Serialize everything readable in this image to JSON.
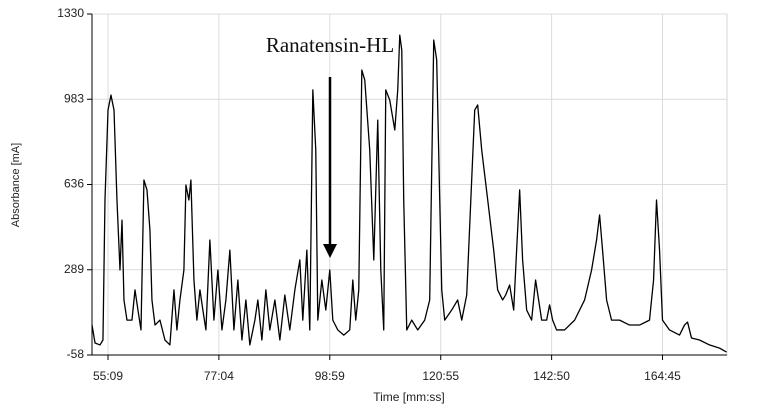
{
  "chart_data": {
    "type": "line",
    "x_label": "Time [mm:ss]",
    "y_label": "Absorbance [mA]",
    "annotation": "Ranatensin-HL",
    "xlim": [
      3119,
      10650
    ],
    "xticks": [
      {
        "value": 3309,
        "label": "55:09"
      },
      {
        "value": 4624,
        "label": "77:04"
      },
      {
        "value": 5939,
        "label": "98:59"
      },
      {
        "value": 7255,
        "label": "120:55"
      },
      {
        "value": 8570,
        "label": "142:50"
      },
      {
        "value": 9885,
        "label": "164:45"
      }
    ],
    "ylim": [
      -58,
      1330
    ],
    "yticks": [
      -58,
      289,
      636,
      983,
      1330
    ],
    "grid": true,
    "series": [
      {
        "color": "#000000",
        "x": [
          3119,
          3155,
          3214,
          3249,
          3273,
          3309,
          3344,
          3380,
          3415,
          3451,
          3475,
          3498,
          3534,
          3593,
          3629,
          3664,
          3700,
          3735,
          3771,
          3806,
          3830,
          3866,
          3925,
          3984,
          4043,
          4091,
          4126,
          4162,
          4209,
          4233,
          4268,
          4292,
          4328,
          4363,
          4399,
          4434,
          4470,
          4517,
          4565,
          4612,
          4660,
          4707,
          4754,
          4802,
          4849,
          4897,
          4944,
          4991,
          5051,
          5086,
          5134,
          5181,
          5228,
          5288,
          5347,
          5406,
          5465,
          5525,
          5584,
          5619,
          5667,
          5702,
          5738,
          5773,
          5797,
          5845,
          5892,
          5939,
          5975,
          6034,
          6105,
          6176,
          6212,
          6247,
          6283,
          6319,
          6354,
          6413,
          6461,
          6508,
          6544,
          6579,
          6603,
          6650,
          6710,
          6745,
          6769,
          6793,
          6816,
          6852,
          6911,
          6982,
          7065,
          7124,
          7172,
          7207,
          7243,
          7267,
          7302,
          7385,
          7456,
          7504,
          7563,
          7622,
          7658,
          7693,
          7741,
          7812,
          7883,
          7930,
          7989,
          8025,
          8072,
          8120,
          8155,
          8191,
          8226,
          8274,
          8333,
          8380,
          8416,
          8452,
          8511,
          8546,
          8582,
          8629,
          8724,
          8843,
          8961,
          9044,
          9103,
          9139,
          9174,
          9222,
          9281,
          9376,
          9494,
          9613,
          9731,
          9779,
          9814,
          9850,
          9885,
          9968,
          10087,
          10146,
          10182,
          10229,
          10324,
          10442,
          10561,
          10644
        ],
        "values": [
          64,
          -9,
          -17,
          3,
          573,
          939,
          1000,
          939,
          573,
          288,
          491,
          166,
          84,
          84,
          207,
          125,
          44,
          654,
          614,
          451,
          166,
          64,
          84,
          3,
          -17,
          207,
          44,
          166,
          288,
          634,
          573,
          654,
          247,
          84,
          207,
          125,
          44,
          410,
          84,
          288,
          44,
          166,
          369,
          44,
          247,
          3,
          166,
          -17,
          84,
          166,
          3,
          207,
          44,
          166,
          3,
          186,
          44,
          207,
          329,
          84,
          369,
          44,
          1021,
          776,
          84,
          247,
          125,
          288,
          84,
          44,
          23,
          44,
          247,
          84,
          207,
          1102,
          1061,
          776,
          329,
          898,
          288,
          44,
          1021,
          980,
          858,
          1021,
          1244,
          1183,
          573,
          44,
          84,
          44,
          84,
          166,
          1224,
          1143,
          573,
          207,
          84,
          125,
          166,
          84,
          186,
          654,
          939,
          960,
          776,
          573,
          369,
          207,
          166,
          186,
          227,
          125,
          369,
          614,
          329,
          125,
          84,
          247,
          166,
          84,
          84,
          146,
          84,
          44,
          44,
          84,
          166,
          288,
          410,
          512,
          369,
          166,
          84,
          84,
          64,
          64,
          84,
          247,
          573,
          369,
          84,
          44,
          23,
          64,
          76,
          11,
          3,
          -17,
          -30,
          -46
        ]
      }
    ]
  }
}
